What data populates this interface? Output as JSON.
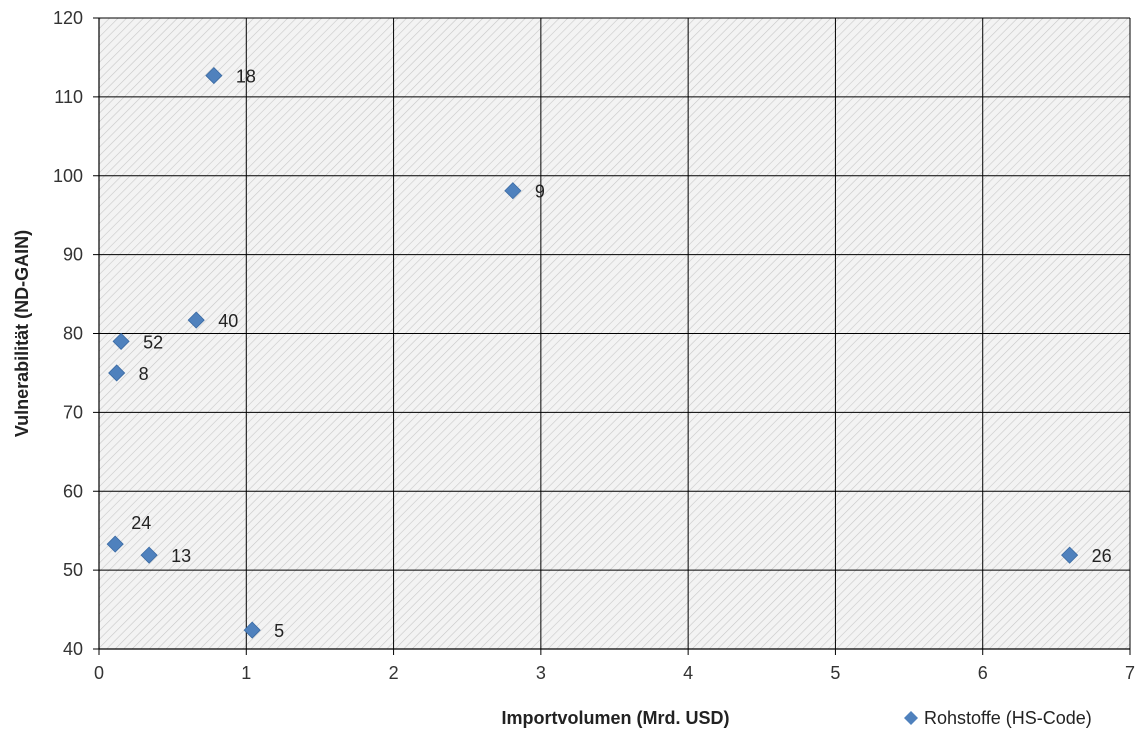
{
  "chart_data": {
    "type": "scatter",
    "title": "",
    "xlabel": "Importvolumen (Mrd. USD)",
    "ylabel": "Vulnerabilität (ND-GAIN)",
    "xlim": [
      0,
      7
    ],
    "ylim": [
      40,
      120
    ],
    "x_ticks": [
      "0",
      "1",
      "2",
      "3",
      "4",
      "5",
      "6",
      "7"
    ],
    "y_ticks": [
      "40",
      "50",
      "60",
      "70",
      "80",
      "90",
      "100",
      "110",
      "120"
    ],
    "grid": true,
    "legend": {
      "position": "bottom-right"
    },
    "series": [
      {
        "name": "Rohstoffe (HS-Code)",
        "marker": "diamond",
        "color": "#4f81bd",
        "points": [
          {
            "x": 0.78,
            "y": 112.7,
            "label": "18"
          },
          {
            "x": 2.81,
            "y": 98.1,
            "label": "9"
          },
          {
            "x": 0.66,
            "y": 81.7,
            "label": "40"
          },
          {
            "x": 0.15,
            "y": 79.0,
            "label": "52"
          },
          {
            "x": 0.12,
            "y": 75.0,
            "label": "8"
          },
          {
            "x": 0.11,
            "y": 53.3,
            "label": "24"
          },
          {
            "x": 0.34,
            "y": 51.9,
            "label": "13"
          },
          {
            "x": 6.59,
            "y": 51.9,
            "label": "26"
          },
          {
            "x": 1.04,
            "y": 42.4,
            "label": "5"
          }
        ]
      }
    ]
  }
}
